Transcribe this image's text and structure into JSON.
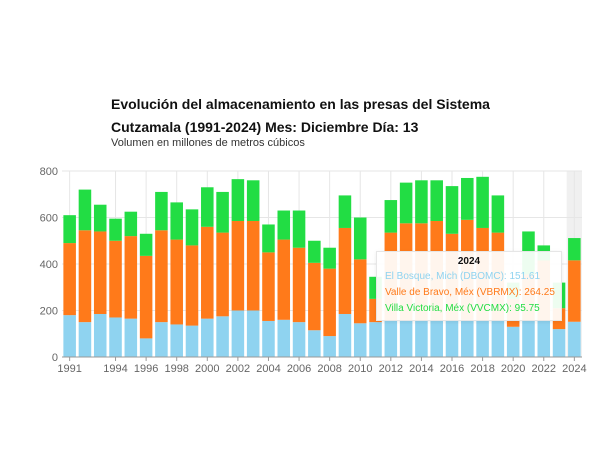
{
  "title": "Evolución del almacenamiento en las presas del Sistema Cutzamala (1991-2024) Mes: Diciembre Día: 13",
  "subtitle": "Volumen en millones de metros cúbicos",
  "colors": {
    "bosque": "#8fd3f0",
    "valle": "#ff7a1a",
    "victoria": "#22dd44",
    "grid": "#e6e6e6",
    "axis": "#666666",
    "highlight": "#f0f0f0"
  },
  "tooltip": {
    "title": "2024",
    "rows": [
      {
        "text": "El Bosque, Mich (DBOMC): 151.61",
        "color": "#8fd3f0"
      },
      {
        "text": "Valle de Bravo, Méx (VBRMX): 264.25",
        "color": "#ff7a1a"
      },
      {
        "text": "Villa Victoria, Méx (VVCMX): 95.75",
        "color": "#22dd44"
      }
    ]
  },
  "chart_data": {
    "type": "bar",
    "stacked": true,
    "grid": true,
    "ylim": [
      0,
      800
    ],
    "yticks": [
      0,
      200,
      400,
      600,
      800
    ],
    "xticks": [
      "1991",
      "1994",
      "1996",
      "1998",
      "2000",
      "2002",
      "2004",
      "2006",
      "2008",
      "2010",
      "2012",
      "2014",
      "2016",
      "2018",
      "2020",
      "2022",
      "2024"
    ],
    "highlight": "2024",
    "categories": [
      "1991",
      "1992",
      "1993",
      "1994",
      "1995",
      "1996",
      "1997",
      "1998",
      "1999",
      "2000",
      "2001",
      "2002",
      "2003",
      "2004",
      "2005",
      "2006",
      "2007",
      "2008",
      "2009",
      "2010",
      "2011",
      "2012",
      "2013",
      "2014",
      "2015",
      "2016",
      "2017",
      "2018",
      "2019",
      "2020",
      "2021",
      "2022",
      "2023",
      "2024"
    ],
    "series": [
      {
        "name": "El Bosque, Mich (DBOMC)",
        "color": "#8fd3f0",
        "values": [
          180,
          150,
          185,
          170,
          165,
          80,
          150,
          140,
          135,
          165,
          175,
          200,
          200,
          155,
          160,
          150,
          115,
          90,
          185,
          145,
          150,
          155,
          155,
          155,
          155,
          155,
          160,
          155,
          155,
          130,
          155,
          155,
          120,
          151.61
        ]
      },
      {
        "name": "Valle de Bravo, Méx (VBRMX)",
        "color": "#ff7a1a",
        "values": [
          310,
          395,
          355,
          330,
          355,
          355,
          395,
          365,
          345,
          395,
          360,
          385,
          385,
          295,
          345,
          320,
          290,
          290,
          370,
          275,
          100,
          380,
          420,
          420,
          430,
          375,
          430,
          400,
          380,
          120,
          200,
          260,
          90,
          264.25
        ]
      },
      {
        "name": "Villa Victoria, Méx (VVCMX)",
        "color": "#22dd44",
        "values": [
          120,
          175,
          115,
          95,
          105,
          95,
          165,
          160,
          155,
          170,
          175,
          180,
          175,
          120,
          125,
          160,
          95,
          90,
          140,
          180,
          95,
          140,
          175,
          185,
          175,
          205,
          180,
          220,
          160,
          70,
          185,
          65,
          110,
          95.75
        ]
      }
    ]
  }
}
